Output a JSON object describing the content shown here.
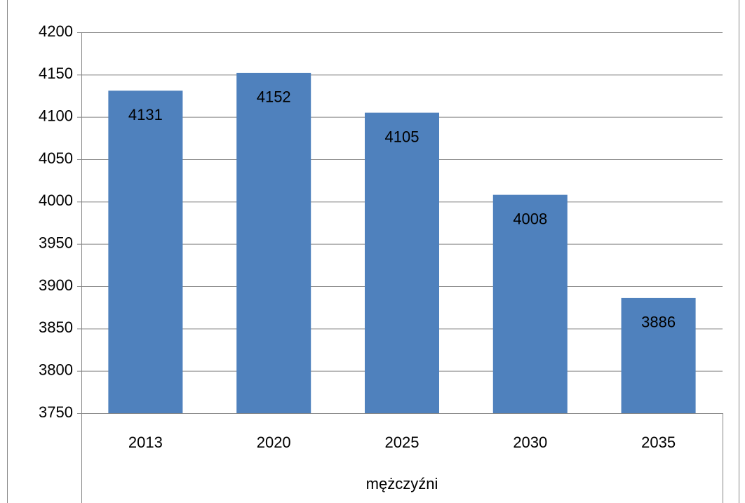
{
  "chart_data": {
    "type": "bar",
    "categories": [
      "2013",
      "2020",
      "2025",
      "2030",
      "2035"
    ],
    "values": [
      4131,
      4152,
      4105,
      4008,
      3886
    ],
    "color": "#4f81bd",
    "xlabel": "mężczyźni",
    "ylim": [
      3750,
      4200
    ],
    "yticks": [
      3750,
      3800,
      3850,
      3900,
      3950,
      4000,
      4050,
      4100,
      4150,
      4200
    ],
    "grid": true,
    "value_labels_inside": true
  }
}
